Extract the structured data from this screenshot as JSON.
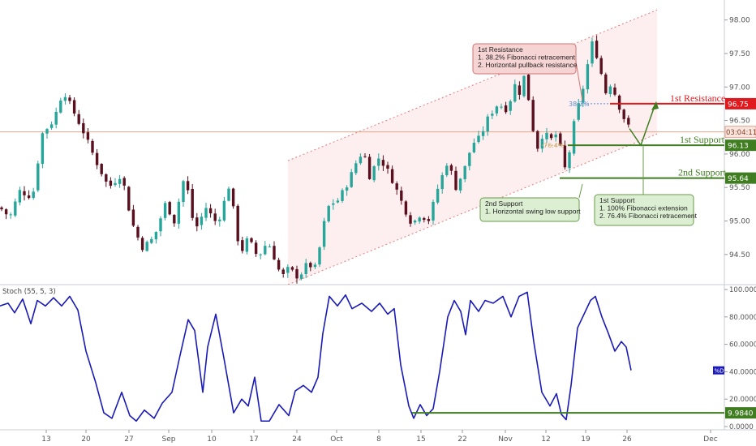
{
  "chart_data": [
    {
      "type": "candlestick",
      "instrument_axis": "right",
      "ylim": [
        94.05,
        98.25
      ],
      "y_ticks": [
        "98.00",
        "97.50",
        "97.00",
        "96.50",
        "96.00",
        "95.50",
        "95.00",
        "94.50"
      ],
      "y_tick_values": [
        98.0,
        97.5,
        97.0,
        96.5,
        96.0,
        95.5,
        95.0,
        94.5
      ],
      "x_ticks": [
        "13",
        "20",
        "27",
        "Sep",
        "10",
        "17",
        "24",
        "Oct",
        "8",
        "15",
        "22",
        "Nov",
        "12",
        "19",
        "26",
        "Dec"
      ],
      "current_price": 96.33,
      "current_price_label": "03:04:11",
      "colors": {
        "up": "#26a69a",
        "down": "#5a0f1e",
        "price_line": "#e8a58c",
        "channel": "#f4a7a7",
        "resistance": "#e0191e",
        "support": "#3f7d20"
      },
      "levels": [
        {
          "name": "1st Resistance",
          "value": 96.75,
          "tag": "96.75",
          "color": "#e0191e"
        },
        {
          "name": "1st Support",
          "value": 96.13,
          "tag": "96.13",
          "color": "#3f7d20"
        },
        {
          "name": "2nd Support",
          "value": 95.64,
          "tag": "95.64",
          "color": "#3f7d20"
        }
      ],
      "fib_labels": [
        "38.2%",
        "76.4%"
      ],
      "annotations": [
        {
          "id": "resistance-note",
          "lines": [
            "1st Resistance",
            "1. 38.2% Fibonacci retracement",
            "2. Horizontal pullback resistance"
          ]
        },
        {
          "id": "second-support-note",
          "lines": [
            "2nd Support",
            "1. Horizontal swing low support"
          ]
        },
        {
          "id": "first-support-note",
          "lines": [
            "1st Support",
            "1. 100% Fibonacci extension",
            "2. 76.4% Fibonacci retracement"
          ]
        }
      ],
      "path": [
        [
          0,
          95.2
        ],
        [
          12,
          95.05
        ],
        [
          24,
          95.45
        ],
        [
          40,
          95.35
        ],
        [
          52,
          96.3
        ],
        [
          66,
          96.5
        ],
        [
          78,
          96.95
        ],
        [
          90,
          96.65
        ],
        [
          104,
          96.3
        ],
        [
          118,
          95.9
        ],
        [
          134,
          95.5
        ],
        [
          150,
          95.7
        ],
        [
          162,
          95.0
        ],
        [
          175,
          94.6
        ],
        [
          190,
          94.75
        ],
        [
          205,
          95.3
        ],
        [
          214,
          94.95
        ],
        [
          228,
          95.7
        ],
        [
          240,
          94.85
        ],
        [
          254,
          95.2
        ],
        [
          268,
          94.95
        ],
        [
          283,
          95.55
        ],
        [
          296,
          94.5
        ],
        [
          306,
          94.75
        ],
        [
          318,
          94.45
        ],
        [
          330,
          94.7
        ],
        [
          340,
          94.4
        ],
        [
          347,
          94.15
        ],
        [
          356,
          94.3
        ],
        [
          368,
          94.15
        ],
        [
          378,
          94.35
        ],
        [
          390,
          94.3
        ],
        [
          398,
          94.9
        ],
        [
          406,
          95.25
        ],
        [
          416,
          95.3
        ],
        [
          428,
          95.55
        ],
        [
          440,
          95.9
        ],
        [
          448,
          96.05
        ],
        [
          456,
          95.65
        ],
        [
          466,
          95.95
        ],
        [
          476,
          95.8
        ],
        [
          486,
          95.55
        ],
        [
          498,
          95.2
        ],
        [
          508,
          94.95
        ],
        [
          518,
          95.1
        ],
        [
          528,
          95.0
        ],
        [
          540,
          95.5
        ],
        [
          552,
          95.9
        ],
        [
          562,
          95.5
        ],
        [
          572,
          95.75
        ],
        [
          582,
          96.15
        ],
        [
          592,
          96.25
        ],
        [
          602,
          96.55
        ],
        [
          614,
          96.75
        ],
        [
          626,
          96.65
        ],
        [
          634,
          97.05
        ],
        [
          640,
          96.9
        ],
        [
          646,
          97.15
        ],
        [
          652,
          96.8
        ],
        [
          658,
          96.3
        ],
        [
          664,
          96.05
        ],
        [
          670,
          96.35
        ],
        [
          678,
          96.2
        ],
        [
          686,
          96.3
        ],
        [
          692,
          96.05
        ],
        [
          697,
          95.75
        ],
        [
          704,
          96.15
        ],
        [
          710,
          96.65
        ],
        [
          716,
          96.8
        ],
        [
          722,
          97.2
        ],
        [
          730,
          97.65
        ],
        [
          738,
          97.4
        ],
        [
          746,
          96.9
        ],
        [
          752,
          97.05
        ],
        [
          760,
          96.85
        ],
        [
          766,
          96.6
        ],
        [
          771,
          96.5
        ],
        [
          776,
          96.38
        ]
      ],
      "channel": {
        "lower": [
          [
            355,
            94.05
          ],
          [
            810,
            96.3
          ]
        ],
        "width": 1.85
      }
    },
    {
      "type": "line",
      "title": "Stoch (55, 5, 3)",
      "ylim": [
        0,
        100
      ],
      "y_ticks": [
        "100.0000",
        "80.0000",
        "60.0000",
        "40.0000",
        "20.0000",
        "0.0000"
      ],
      "y_tick_values": [
        100,
        80,
        60,
        40,
        20,
        0
      ],
      "series_tag": "%D",
      "current_value": 41.0,
      "support_level": {
        "value": 9.984,
        "tag": "9.9840"
      },
      "line_color": "#1a1ab8",
      "values": [
        [
          0,
          88
        ],
        [
          10,
          90
        ],
        [
          18,
          83
        ],
        [
          28,
          93
        ],
        [
          38,
          75
        ],
        [
          46,
          92
        ],
        [
          56,
          88
        ],
        [
          66,
          94
        ],
        [
          76,
          88
        ],
        [
          86,
          95
        ],
        [
          96,
          85
        ],
        [
          106,
          55
        ],
        [
          118,
          32
        ],
        [
          128,
          10
        ],
        [
          138,
          6
        ],
        [
          150,
          25
        ],
        [
          160,
          8
        ],
        [
          168,
          4
        ],
        [
          178,
          12
        ],
        [
          190,
          6
        ],
        [
          200,
          17
        ],
        [
          212,
          25
        ],
        [
          222,
          52
        ],
        [
          232,
          78
        ],
        [
          240,
          70
        ],
        [
          250,
          25
        ],
        [
          256,
          58
        ],
        [
          266,
          82
        ],
        [
          276,
          50
        ],
        [
          288,
          10
        ],
        [
          298,
          20
        ],
        [
          306,
          15
        ],
        [
          314,
          36
        ],
        [
          322,
          4
        ],
        [
          332,
          4
        ],
        [
          344,
          16
        ],
        [
          356,
          8
        ],
        [
          364,
          26
        ],
        [
          374,
          30
        ],
        [
          384,
          25
        ],
        [
          392,
          36
        ],
        [
          398,
          68
        ],
        [
          406,
          95
        ],
        [
          416,
          88
        ],
        [
          426,
          96
        ],
        [
          434,
          86
        ],
        [
          446,
          90
        ],
        [
          458,
          84
        ],
        [
          468,
          90
        ],
        [
          478,
          82
        ],
        [
          486,
          86
        ],
        [
          494,
          45
        ],
        [
          504,
          15
        ],
        [
          510,
          6
        ],
        [
          518,
          16
        ],
        [
          526,
          8
        ],
        [
          534,
          13
        ],
        [
          542,
          40
        ],
        [
          552,
          80
        ],
        [
          560,
          92
        ],
        [
          568,
          84
        ],
        [
          574,
          67
        ],
        [
          580,
          92
        ],
        [
          590,
          84
        ],
        [
          598,
          92
        ],
        [
          608,
          90
        ],
        [
          620,
          95
        ],
        [
          630,
          80
        ],
        [
          640,
          95
        ],
        [
          650,
          98
        ],
        [
          658,
          62
        ],
        [
          668,
          25
        ],
        [
          678,
          15
        ],
        [
          686,
          24
        ],
        [
          692,
          9
        ],
        [
          698,
          5
        ],
        [
          704,
          30
        ],
        [
          712,
          72
        ],
        [
          720,
          82
        ],
        [
          728,
          92
        ],
        [
          734,
          95
        ],
        [
          742,
          80
        ],
        [
          750,
          68
        ],
        [
          758,
          55
        ],
        [
          766,
          62
        ],
        [
          772,
          58
        ],
        [
          778,
          41
        ]
      ]
    }
  ]
}
